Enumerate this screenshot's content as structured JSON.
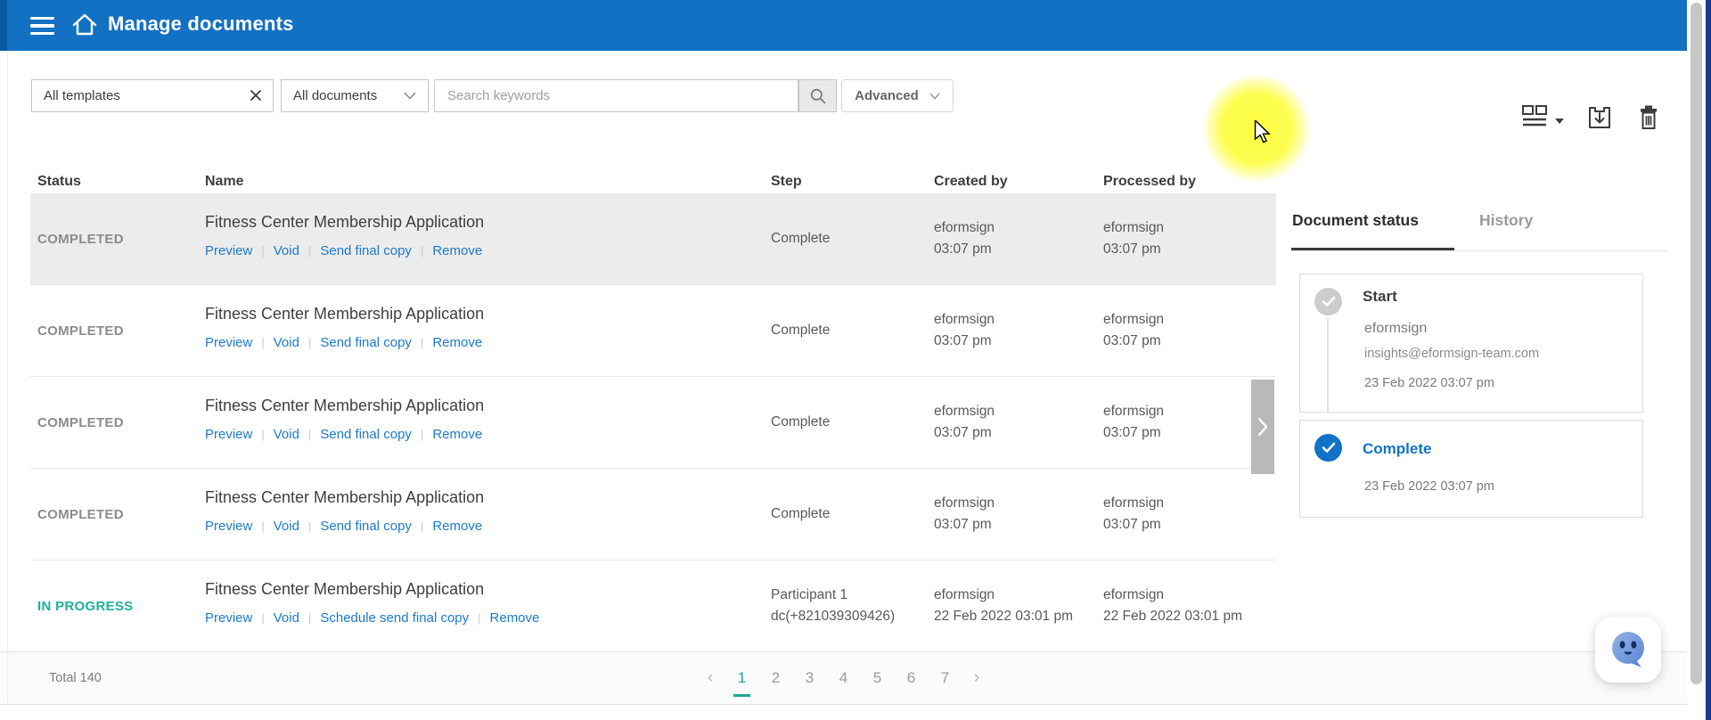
{
  "header": {
    "title": "Manage documents"
  },
  "filters": {
    "template_filter_value": "All templates",
    "document_filter_value": "All documents",
    "search_placeholder": "Search keywords",
    "advanced_label": "Advanced"
  },
  "table": {
    "columns": [
      "Status",
      "Name",
      "Step",
      "Created by",
      "Processed by"
    ],
    "actions_separator": "|",
    "rows": [
      {
        "status": "COMPLETED",
        "status_type": "completed",
        "selected": true,
        "name": "Fitness Center Membership Application",
        "actions": [
          "Preview",
          "Void",
          "Send final copy",
          "Remove"
        ],
        "step": [
          "Complete"
        ],
        "created_by": [
          "eformsign",
          "03:07 pm"
        ],
        "processed_by": [
          "eformsign",
          "03:07 pm"
        ]
      },
      {
        "status": "COMPLETED",
        "status_type": "completed",
        "selected": false,
        "name": "Fitness Center Membership Application",
        "actions": [
          "Preview",
          "Void",
          "Send final copy",
          "Remove"
        ],
        "step": [
          "Complete"
        ],
        "created_by": [
          "eformsign",
          "03:07 pm"
        ],
        "processed_by": [
          "eformsign",
          "03:07 pm"
        ]
      },
      {
        "status": "COMPLETED",
        "status_type": "completed",
        "selected": false,
        "name": "Fitness Center Membership Application",
        "actions": [
          "Preview",
          "Void",
          "Send final copy",
          "Remove"
        ],
        "step": [
          "Complete"
        ],
        "created_by": [
          "eformsign",
          "03:07 pm"
        ],
        "processed_by": [
          "eformsign",
          "03:07 pm"
        ]
      },
      {
        "status": "COMPLETED",
        "status_type": "completed",
        "selected": false,
        "name": "Fitness Center Membership Application",
        "actions": [
          "Preview",
          "Void",
          "Send final copy",
          "Remove"
        ],
        "step": [
          "Complete"
        ],
        "created_by": [
          "eformsign",
          "03:07 pm"
        ],
        "processed_by": [
          "eformsign",
          "03:07 pm"
        ]
      },
      {
        "status": "IN PROGRESS",
        "status_type": "in-progress",
        "selected": false,
        "name": "Fitness Center Membership Application",
        "actions": [
          "Preview",
          "Void",
          "Schedule send final copy",
          "Remove"
        ],
        "step": [
          "Participant 1",
          "dc(+821039309426)"
        ],
        "created_by": [
          "eformsign",
          "22 Feb 2022 03:01 pm"
        ],
        "processed_by": [
          "eformsign",
          "22 Feb 2022 03:01 pm"
        ]
      }
    ]
  },
  "panel": {
    "tabs": [
      {
        "label": "Document status",
        "active": true
      },
      {
        "label": "History",
        "active": false
      }
    ],
    "timeline": [
      {
        "state": "done",
        "title": "Start",
        "name": "eformsign",
        "email": "insights@eformsign-team.com",
        "date": "23 Feb 2022 03:07 pm",
        "connector": true
      },
      {
        "state": "current",
        "title": "Complete",
        "date": "23 Feb 2022 03:07 pm"
      }
    ]
  },
  "footer": {
    "total_label": "Total 140",
    "pages": [
      "1",
      "2",
      "3",
      "4",
      "5",
      "6",
      "7"
    ],
    "active_page": "1",
    "prev": "‹",
    "next": "›"
  },
  "colors": {
    "header_blue": "#1371c3",
    "link_blue": "#1b79cb",
    "completed_gray": "#8c8c8c",
    "in_progress_teal": "#1fae9e",
    "active_page_teal": "#1ba99b",
    "complete_blue": "#1172c8",
    "highlight_yellow": "#fdfd3c"
  }
}
